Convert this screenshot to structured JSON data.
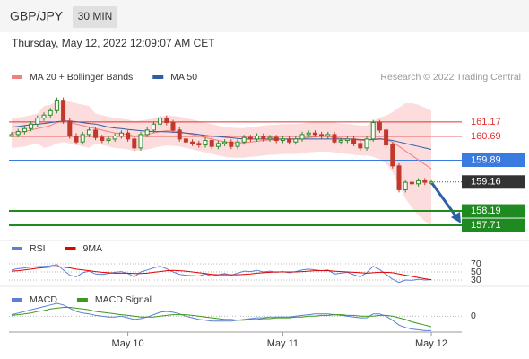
{
  "chart_data": {
    "type": "candlestick",
    "title": "GBP/JPY",
    "interval": "30 MIN",
    "subtitle": "Thursday, May 12, 2022 12:09:07 AM CET",
    "credit": "Research © 2022 Trading Central",
    "categories": [
      null,
      null,
      null,
      null,
      null,
      null,
      null,
      null,
      null,
      null,
      null,
      null,
      null,
      null,
      null,
      null,
      null,
      null,
      "May 10",
      null,
      null,
      null,
      null,
      null,
      null,
      null,
      null,
      null,
      null,
      null,
      null,
      null,
      null,
      null,
      null,
      null,
      null,
      null,
      null,
      null,
      null,
      null,
      "May 11",
      null,
      null,
      null,
      null,
      null,
      null,
      null,
      null,
      null,
      null,
      null,
      null,
      null,
      null,
      null,
      null,
      null,
      null,
      null,
      null,
      null,
      null,
      "May 12"
    ],
    "values": [
      160.75,
      160.85,
      160.95,
      161.1,
      161.3,
      161.4,
      161.55,
      161.9,
      161.2,
      160.7,
      160.5,
      160.75,
      160.9,
      160.65,
      160.55,
      160.6,
      160.7,
      160.8,
      160.6,
      160.3,
      160.75,
      160.9,
      161.1,
      161.3,
      161.15,
      160.9,
      160.6,
      160.5,
      160.45,
      160.4,
      160.55,
      160.35,
      160.45,
      160.5,
      160.35,
      160.5,
      160.65,
      160.6,
      160.7,
      160.6,
      160.65,
      160.55,
      160.6,
      160.5,
      160.6,
      160.75,
      160.8,
      160.75,
      160.7,
      160.75,
      160.5,
      160.55,
      160.6,
      160.45,
      160.3,
      160.6,
      161.15,
      160.9,
      160.4,
      159.7,
      158.9,
      159.15,
      159.1,
      159.2,
      159.15,
      159.16
    ],
    "up_color": "#2a8a2a",
    "down_color": "#c0392b",
    "series": [
      {
        "name": "MA 20 + Bollinger Bands",
        "color": "#f08080",
        "band_color": "#fbd3d3",
        "values": [
          160.8,
          160.82,
          160.85,
          160.9,
          160.95,
          161.0,
          161.05,
          161.15,
          161.2,
          161.15,
          161.1,
          161.05,
          161.0,
          160.95,
          160.9,
          160.85,
          160.8,
          160.78,
          160.75,
          160.7,
          160.72,
          160.75,
          160.8,
          160.85,
          160.88,
          160.87,
          160.85,
          160.8,
          160.75,
          160.7,
          160.65,
          160.6,
          160.55,
          160.5,
          160.48,
          160.47,
          160.47,
          160.5,
          160.52,
          160.55,
          160.57,
          160.58,
          160.6,
          160.6,
          160.6,
          160.62,
          160.65,
          160.67,
          160.68,
          160.68,
          160.65,
          160.62,
          160.6,
          160.58,
          160.55,
          160.55,
          160.6,
          160.62,
          160.58,
          160.5,
          160.35,
          160.2,
          160.05,
          159.9,
          159.75,
          159.6
        ],
        "upper": [
          161.3,
          161.32,
          161.35,
          161.4,
          161.45,
          161.7,
          161.75,
          161.85,
          161.9,
          161.85,
          161.8,
          161.75,
          161.7,
          161.45,
          161.4,
          161.35,
          161.3,
          161.28,
          161.25,
          161.2,
          161.22,
          161.25,
          161.3,
          161.35,
          161.38,
          161.37,
          161.35,
          161.3,
          161.25,
          161.2,
          161.15,
          161.1,
          161.05,
          161.0,
          160.98,
          160.97,
          160.97,
          161.0,
          161.02,
          161.05,
          161.07,
          161.08,
          161.1,
          161.1,
          161.1,
          161.12,
          161.15,
          161.17,
          161.18,
          161.18,
          161.15,
          161.12,
          161.1,
          161.08,
          161.05,
          161.05,
          161.2,
          161.32,
          161.38,
          161.5,
          161.65,
          161.8,
          161.8,
          161.75,
          161.65,
          161.55
        ],
        "lower": [
          160.3,
          160.32,
          160.35,
          160.4,
          160.45,
          160.3,
          160.35,
          160.45,
          160.5,
          160.45,
          160.4,
          160.35,
          160.3,
          160.45,
          160.4,
          160.35,
          160.3,
          160.28,
          160.25,
          160.2,
          160.22,
          160.25,
          160.3,
          160.35,
          160.38,
          160.37,
          160.35,
          160.3,
          160.25,
          160.2,
          160.15,
          160.1,
          160.05,
          160.0,
          159.98,
          159.97,
          159.97,
          160.0,
          160.02,
          160.05,
          160.07,
          160.08,
          160.1,
          160.1,
          160.1,
          160.12,
          160.15,
          160.17,
          160.18,
          160.18,
          160.15,
          160.12,
          160.1,
          160.08,
          160.05,
          160.05,
          160.0,
          159.92,
          159.78,
          159.5,
          159.05,
          158.6,
          158.3,
          158.05,
          157.85,
          157.65
        ]
      },
      {
        "name": "MA 50",
        "color": "#2e5fa3",
        "values": [
          161.0,
          161.02,
          161.05,
          161.08,
          161.1,
          161.12,
          161.15,
          161.18,
          161.2,
          161.2,
          161.18,
          161.15,
          161.12,
          161.1,
          161.05,
          161.0,
          160.97,
          160.95,
          160.92,
          160.9,
          160.88,
          160.86,
          160.85,
          160.85,
          160.84,
          160.83,
          160.82,
          160.8,
          160.78,
          160.75,
          160.72,
          160.7,
          160.68,
          160.66,
          160.64,
          160.62,
          160.6,
          160.6,
          160.6,
          160.6,
          160.6,
          160.6,
          160.6,
          160.6,
          160.6,
          160.6,
          160.6,
          160.6,
          160.6,
          160.6,
          160.6,
          160.6,
          160.6,
          160.6,
          160.58,
          160.57,
          160.58,
          160.6,
          160.58,
          160.55,
          160.5,
          160.45,
          160.4,
          160.35,
          160.3,
          160.25
        ]
      }
    ],
    "levels": [
      {
        "value": 161.17,
        "color": "#e03030",
        "style": "line"
      },
      {
        "value": 160.69,
        "color": "#e03030",
        "style": "line"
      },
      {
        "value": 159.89,
        "color": "#3a7be0",
        "style": "box"
      },
      {
        "value": 159.16,
        "color": "#333333",
        "style": "last"
      },
      {
        "value": 158.19,
        "color": "#1f8a1f",
        "style": "box"
      },
      {
        "value": 157.71,
        "color": "#1f8a1f",
        "style": "box"
      }
    ],
    "ylim": [
      157.44,
      162.4
    ],
    "rsi": {
      "series": [
        {
          "name": "RSI",
          "color": "#5b7fd6",
          "values": [
            55,
            58,
            60,
            62,
            63,
            64,
            65,
            68,
            55,
            42,
            38,
            48,
            52,
            45,
            44,
            46,
            49,
            51,
            46,
            38,
            50,
            55,
            60,
            64,
            58,
            50,
            44,
            42,
            41,
            40,
            45,
            40,
            43,
            46,
            42,
            47,
            52,
            51,
            54,
            50,
            52,
            49,
            51,
            48,
            51,
            55,
            57,
            55,
            53,
            55,
            45,
            47,
            49,
            43,
            38,
            48,
            64,
            56,
            44,
            32,
            24,
            30,
            29,
            32,
            30,
            31
          ]
        },
        {
          "name": "9MA",
          "color": "#e00000",
          "values": [
            52,
            53,
            55,
            57,
            59,
            61,
            62,
            63,
            62,
            60,
            57,
            55,
            53,
            51,
            49,
            48,
            47,
            47,
            47,
            46,
            46,
            47,
            49,
            51,
            53,
            54,
            53,
            52,
            50,
            48,
            46,
            44,
            43,
            43,
            43,
            43,
            44,
            45,
            47,
            48,
            49,
            50,
            50,
            50,
            50,
            51,
            52,
            53,
            53,
            53,
            52,
            51,
            50,
            49,
            48,
            47,
            48,
            49,
            49,
            48,
            45,
            42,
            39,
            36,
            33,
            31
          ]
        }
      ],
      "ylim": [
        0,
        100
      ],
      "yticks": [
        70,
        50,
        30
      ]
    },
    "macd": {
      "series": [
        {
          "name": "MACD",
          "color": "#5b7fd6",
          "values": [
            0.02,
            0.04,
            0.06,
            0.08,
            0.1,
            0.12,
            0.14,
            0.16,
            0.14,
            0.1,
            0.06,
            0.04,
            0.03,
            0.01,
            0,
            -0.01,
            -0.01,
            0,
            -0.02,
            -0.04,
            -0.03,
            -0.01,
            0.02,
            0.05,
            0.06,
            0.05,
            0.03,
            0,
            -0.02,
            -0.04,
            -0.05,
            -0.06,
            -0.06,
            -0.06,
            -0.06,
            -0.05,
            -0.04,
            -0.03,
            -0.02,
            -0.02,
            -0.01,
            -0.01,
            -0.01,
            -0.01,
            0,
            0.01,
            0.02,
            0.03,
            0.03,
            0.03,
            0.02,
            0.01,
            0,
            -0.01,
            -0.02,
            -0.02,
            0.03,
            0.03,
            0,
            -0.05,
            -0.11,
            -0.14,
            -0.16,
            -0.17,
            -0.18,
            -0.18
          ]
        },
        {
          "name": "MACD Signal",
          "color": "#3a9a1a",
          "values": [
            0.01,
            0.02,
            0.03,
            0.04,
            0.06,
            0.07,
            0.09,
            0.1,
            0.11,
            0.11,
            0.1,
            0.09,
            0.08,
            0.06,
            0.05,
            0.04,
            0.03,
            0.02,
            0.01,
            0,
            -0.01,
            -0.01,
            -0.01,
            0,
            0.01,
            0.02,
            0.02,
            0.02,
            0.01,
            0,
            -0.01,
            -0.02,
            -0.03,
            -0.04,
            -0.04,
            -0.05,
            -0.05,
            -0.04,
            -0.04,
            -0.03,
            -0.03,
            -0.02,
            -0.02,
            -0.02,
            -0.01,
            -0.01,
            0,
            0,
            0.01,
            0.01,
            0.02,
            0.02,
            0.01,
            0.01,
            0,
            0,
            0,
            0.01,
            0.01,
            0,
            -0.02,
            -0.04,
            -0.07,
            -0.09,
            -0.11,
            -0.13
          ]
        }
      ],
      "ylim": [
        -0.22,
        0.25
      ],
      "yticks": [
        0
      ]
    }
  }
}
